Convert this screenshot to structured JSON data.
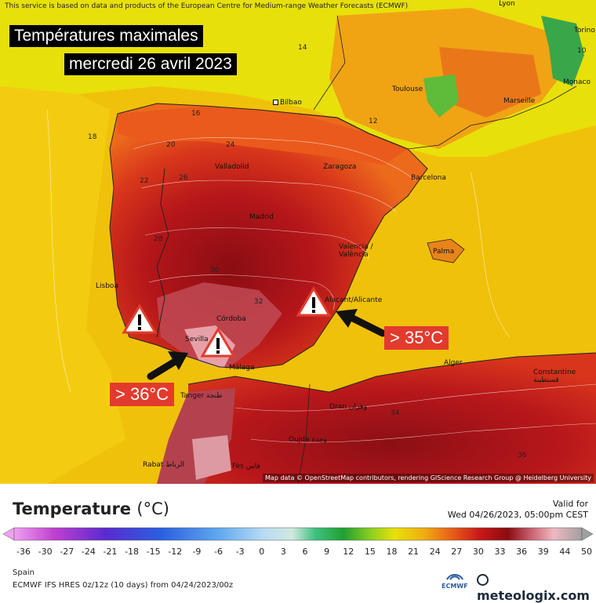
{
  "disclaimer": "This service is based on data and products of the European Centre for Medium-range Weather Forecasts (ECMWF)",
  "title_line1": "Températures maximales",
  "title_line2": "mercredi 26 avril 2023",
  "callout_west": "> 36°C",
  "callout_east": "> 35°C",
  "attribution": "Map data © OpenStreetMap contributors, rendering GIScience Research Group @ Heidelberg University",
  "cities": [
    {
      "name": "Bilbao",
      "id": "bilbao"
    },
    {
      "name": "Toulouse",
      "id": "toulouse"
    },
    {
      "name": "Marseille",
      "id": "marseille"
    },
    {
      "name": "Monaco",
      "id": "monaco"
    },
    {
      "name": "Torino",
      "id": "torino"
    },
    {
      "name": "Lyon",
      "id": "lyon"
    },
    {
      "name": "Valladolid",
      "id": "valladolid"
    },
    {
      "name": "Zaragoza",
      "id": "zaragoza"
    },
    {
      "name": "Barcelona",
      "id": "barcelona"
    },
    {
      "name": "Madrid",
      "id": "madrid"
    },
    {
      "name": "Valencia / València",
      "id": "valencia"
    },
    {
      "name": "Palma",
      "id": "palma"
    },
    {
      "name": "Lisboa",
      "id": "lisboa"
    },
    {
      "name": "Córdoba",
      "id": "cordoba"
    },
    {
      "name": "Sevilla",
      "id": "sevilla"
    },
    {
      "name": "Málaga",
      "id": "malaga"
    },
    {
      "name": "Alacant/Alicante",
      "id": "alicante"
    },
    {
      "name": "Alger",
      "id": "alger"
    },
    {
      "name": "Constantine قسنطينة",
      "id": "constantine"
    },
    {
      "name": "Tanger طنجة",
      "id": "tanger"
    },
    {
      "name": "Oran وهران",
      "id": "oran"
    },
    {
      "name": "Oujda وجدة",
      "id": "oujda"
    },
    {
      "name": "Rabat الرباط",
      "id": "rabat"
    },
    {
      "name": "Fès فاس",
      "id": "fes"
    }
  ],
  "isotherm_labels": [
    "14",
    "16",
    "18",
    "20",
    "22",
    "24",
    "26",
    "28",
    "30",
    "32",
    "34",
    "36",
    "12",
    "10"
  ],
  "legend": {
    "title": "Temperature",
    "unit": "(°C)",
    "valid_label": "Valid for",
    "valid_time": "Wed 04/26/2023, 05:00pm CEST",
    "ticks": [
      "-36",
      "-30",
      "-27",
      "-24",
      "-21",
      "-18",
      "-15",
      "-12",
      "-9",
      "-6",
      "-3",
      "0",
      "3",
      "6",
      "9",
      "12",
      "15",
      "18",
      "21",
      "24",
      "27",
      "30",
      "33",
      "36",
      "39",
      "44",
      "50"
    ],
    "region": "Spain",
    "model": "ECMWF IFS HRES 0z/12z (10 days) from 04/24/2023/00z",
    "ecmwf_logo": "ECMWF",
    "brand": "meteologix.com"
  },
  "icons": [
    "warning-icon",
    "arrow-icon",
    "ecmwf-logo-icon",
    "meteologix-logo-icon"
  ]
}
